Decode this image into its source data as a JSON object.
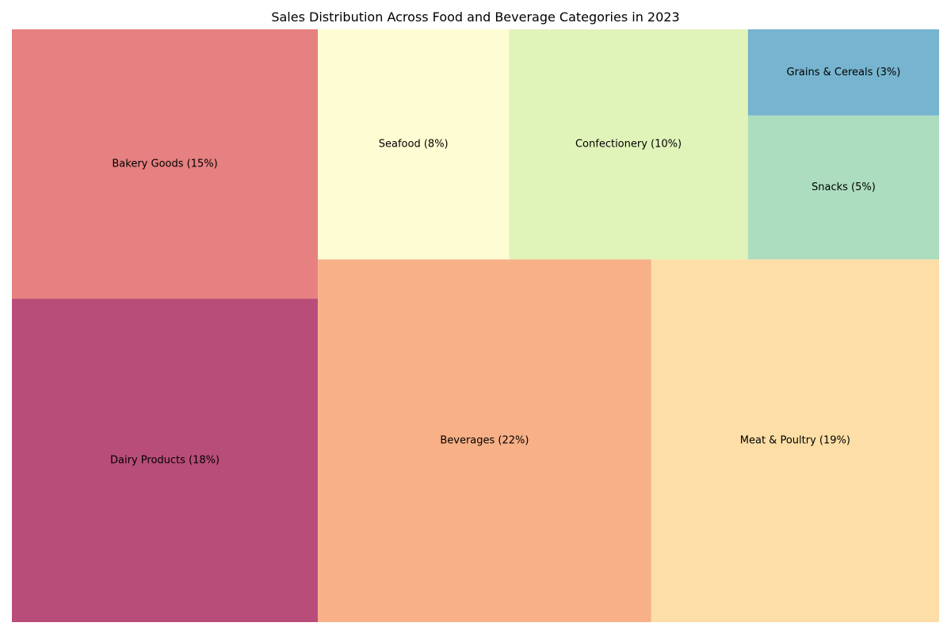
{
  "chart_data": {
    "type": "treemap",
    "title": "Sales Distribution Across Food and Beverage Categories in 2023",
    "items": [
      {
        "label": "Dairy Products (18%)",
        "category": "Dairy Products",
        "value": 18,
        "color": "#b94d79"
      },
      {
        "label": "Bakery Goods (15%)",
        "category": "Bakery Goods",
        "value": 15,
        "color": "#e78080"
      },
      {
        "label": "Beverages (22%)",
        "category": "Beverages",
        "value": 22,
        "color": "#f8b087"
      },
      {
        "label": "Seafood (8%)",
        "category": "Seafood",
        "value": 8,
        "color": "#fefcd2"
      },
      {
        "label": "Meat & Poultry (19%)",
        "category": "Meat & Poultry",
        "value": 19,
        "color": "#fcdea6"
      },
      {
        "label": "Confectionery (10%)",
        "category": "Confectionery",
        "value": 10,
        "color": "#e0f3b9"
      },
      {
        "label": "Snacks (5%)",
        "category": "Snacks",
        "value": 5,
        "color": "#acddbf"
      },
      {
        "label": "Grains & Cereals (3%)",
        "category": "Grains & Cereals",
        "value": 3,
        "color": "#77b4cf"
      }
    ]
  }
}
